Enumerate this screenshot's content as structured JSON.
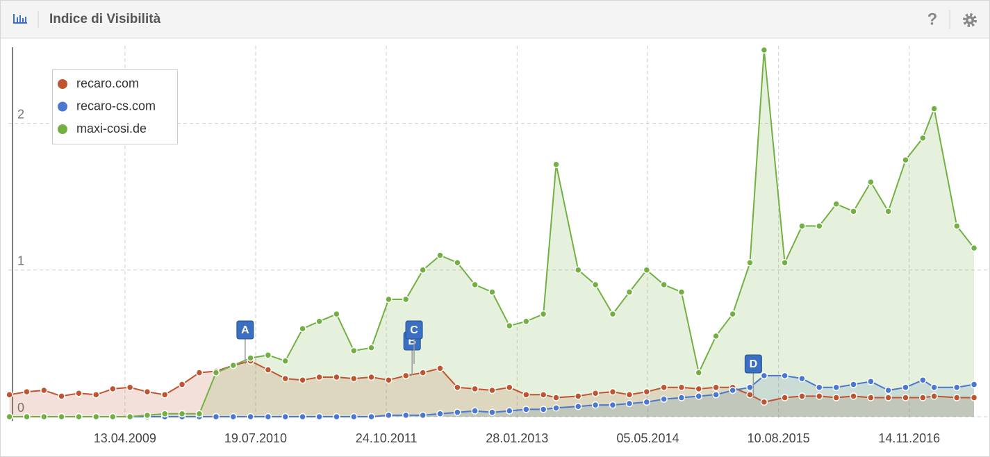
{
  "header": {
    "title": "Indice di Visibilità",
    "help": "?"
  },
  "chart_data": {
    "type": "line",
    "x": [
      "2008-03-01",
      "2008-05-01",
      "2008-07-01",
      "2008-09-01",
      "2008-11-01",
      "2009-01-01",
      "2009-03-01",
      "2009-05-01",
      "2009-07-01",
      "2009-09-01",
      "2009-11-01",
      "2010-01-01",
      "2010-03-01",
      "2010-05-01",
      "2010-07-01",
      "2010-09-01",
      "2010-11-01",
      "2011-01-01",
      "2011-03-01",
      "2011-05-01",
      "2011-07-01",
      "2011-09-01",
      "2011-11-01",
      "2012-01-01",
      "2012-03-01",
      "2012-05-01",
      "2012-07-01",
      "2012-09-01",
      "2012-11-01",
      "2013-01-01",
      "2013-03-01",
      "2013-05-01",
      "2013-06-15",
      "2013-09-01",
      "2013-11-01",
      "2014-01-01",
      "2014-03-01",
      "2014-05-01",
      "2014-07-01",
      "2014-09-01",
      "2014-11-01",
      "2015-01-01",
      "2015-03-01",
      "2015-05-01",
      "2015-06-20",
      "2015-09-01",
      "2015-11-01",
      "2016-01-01",
      "2016-03-01",
      "2016-05-01",
      "2016-07-01",
      "2016-09-01",
      "2016-11-01",
      "2017-01-01",
      "2017-02-10",
      "2017-05-01",
      "2017-07-01"
    ],
    "series": [
      {
        "name": "recaro.com",
        "color": "#bf5530",
        "values": [
          0.15,
          0.17,
          0.18,
          0.14,
          0.16,
          0.15,
          0.19,
          0.2,
          0.17,
          0.15,
          0.22,
          0.3,
          0.31,
          0.35,
          0.38,
          0.32,
          0.26,
          0.25,
          0.27,
          0.27,
          0.26,
          0.27,
          0.25,
          0.28,
          0.3,
          0.33,
          0.2,
          0.19,
          0.18,
          0.2,
          0.15,
          0.15,
          0.13,
          0.14,
          0.16,
          0.17,
          0.15,
          0.17,
          0.2,
          0.2,
          0.19,
          0.2,
          0.2,
          0.15,
          0.1,
          0.13,
          0.14,
          0.14,
          0.13,
          0.14,
          0.13,
          0.13,
          0.13,
          0.13,
          0.14,
          0.13,
          0.13
        ]
      },
      {
        "name": "recaro-cs.com",
        "color": "#4a77cf",
        "values": [
          0,
          0,
          0,
          0,
          0,
          0,
          0,
          0,
          0,
          0,
          0,
          0,
          0,
          0,
          0,
          0,
          0,
          0,
          0,
          0,
          0,
          0,
          0.01,
          0.01,
          0.01,
          0.02,
          0.03,
          0.04,
          0.03,
          0.04,
          0.05,
          0.05,
          0.06,
          0.07,
          0.08,
          0.08,
          0.09,
          0.1,
          0.12,
          0.13,
          0.14,
          0.15,
          0.18,
          0.2,
          0.28,
          0.28,
          0.26,
          0.2,
          0.2,
          0.22,
          0.24,
          0.18,
          0.2,
          0.25,
          0.2,
          0.2,
          0.22
        ]
      },
      {
        "name": "maxi-cosi.de",
        "color": "#72b043",
        "values": [
          0,
          0,
          0,
          0,
          0,
          0,
          0,
          0,
          0.01,
          0.02,
          0.02,
          0.02,
          0.3,
          0.35,
          0.4,
          0.42,
          0.38,
          0.6,
          0.65,
          0.7,
          0.45,
          0.47,
          0.8,
          0.8,
          1.0,
          1.1,
          1.05,
          0.9,
          0.85,
          0.62,
          0.65,
          0.7,
          1.72,
          1.0,
          0.9,
          0.7,
          0.85,
          1.0,
          0.9,
          0.85,
          0.3,
          0.55,
          0.7,
          1.05,
          2.5,
          1.05,
          1.3,
          1.3,
          1.45,
          1.4,
          1.6,
          1.4,
          1.75,
          1.9,
          2.1,
          1.3,
          1.15
        ]
      }
    ],
    "xlim": [
      "2008-02-26",
      "2017-08-19"
    ],
    "xticks": [
      {
        "value": "2009-04-13",
        "label": "13.04.2009"
      },
      {
        "value": "2010-07-19",
        "label": "19.07.2010"
      },
      {
        "value": "2011-10-24",
        "label": "24.10.2011"
      },
      {
        "value": "2013-01-28",
        "label": "28.01.2013"
      },
      {
        "value": "2014-05-05",
        "label": "05.05.2014"
      },
      {
        "value": "2015-08-10",
        "label": "10.08.2015"
      },
      {
        "value": "2016-11-14",
        "label": "14.11.2016"
      }
    ],
    "ylim": [
      0,
      2.5
    ],
    "yticks": [
      0,
      1,
      2
    ],
    "grid": true,
    "legend": "top-left",
    "events": [
      {
        "label": "A",
        "x": "2010-06-12"
      },
      {
        "label": "B",
        "x": "2012-01-23"
      },
      {
        "label": "C",
        "x": "2012-01-30"
      },
      {
        "label": "D",
        "x": "2015-05-13"
      }
    ]
  }
}
